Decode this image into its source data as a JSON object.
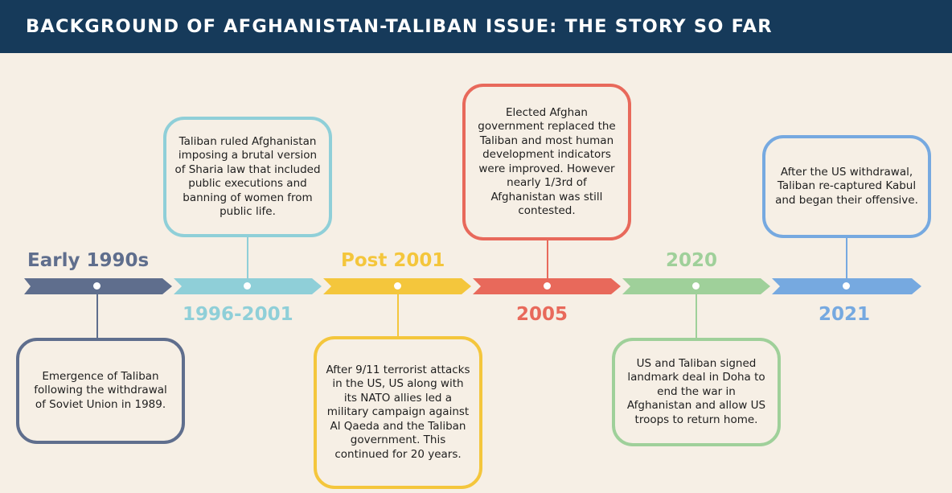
{
  "header": {
    "title": "BACKGROUND OF AFGHANISTAN-TALIBAN ISSUE: THE STORY SO FAR"
  },
  "colors": {
    "header_bg": "#163a5a",
    "background": "#f6efe5",
    "slate": "#5f6e8d",
    "teal": "#8fcfd8",
    "yellow": "#f4c63c",
    "red": "#e8695b",
    "green": "#9fd09a",
    "blue": "#76a9e0"
  },
  "timeline": [
    {
      "year": "Early 1990s",
      "color": "#5f6e8d",
      "text": "Emergence of Taliban following the withdrawal of Soviet Union in 1989."
    },
    {
      "year": "1996-2001",
      "color": "#8fcfd8",
      "text": "Taliban ruled Afghanistan imposing a brutal version of Sharia law that included public executions and banning of women from public life."
    },
    {
      "year": "Post 2001",
      "color": "#f4c63c",
      "text": "After 9/11 terrorist attacks in the US, US along with its NATO allies led a military campaign against Al Qaeda and the Taliban government. This continued for 20 years."
    },
    {
      "year": "2005",
      "color": "#e8695b",
      "text": "Elected Afghan government replaced the Taliban and most human development indicators were improved. However nearly 1/3rd of Afghanistan was still contested."
    },
    {
      "year": "2020",
      "color": "#9fd09a",
      "text": "US and Taliban signed landmark deal in Doha to end the war in Afghanistan and allow US troops to return home."
    },
    {
      "year": "2021",
      "color": "#76a9e0",
      "text": "After the US withdrawal, Taliban re-captured Kabul and began their offensive."
    }
  ]
}
